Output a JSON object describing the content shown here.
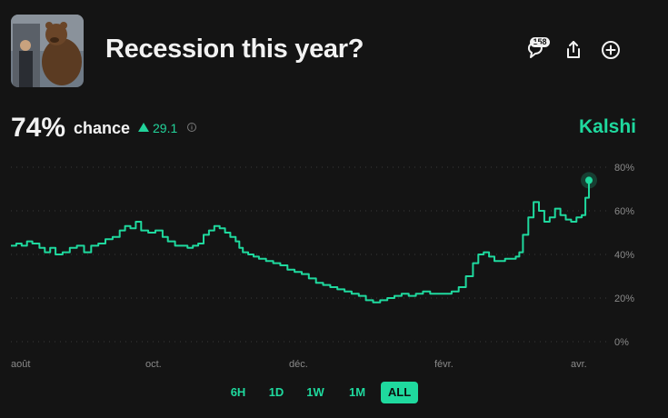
{
  "header": {
    "title": "Recession this year?",
    "comments_count": "158",
    "icons": [
      "comment-icon",
      "share-icon",
      "add-icon"
    ]
  },
  "stats": {
    "probability": "74%",
    "label": "chance",
    "delta": "29.1",
    "delta_direction": "up"
  },
  "brand": "Kalshi",
  "colors": {
    "accent": "#1fd99e",
    "background": "#141414",
    "text": "#f2f2f2"
  },
  "chart_data": {
    "type": "line",
    "x_labels": [
      "août",
      "oct.",
      "déc.",
      "févr.",
      "avr."
    ],
    "y_ticks": [
      "80%",
      "60%",
      "40%",
      "20%",
      "0%"
    ],
    "ylim": [
      0,
      80
    ],
    "grid": true,
    "series": [
      {
        "points": [
          [
            0,
            44
          ],
          [
            3,
            45
          ],
          [
            6,
            44
          ],
          [
            9,
            46
          ],
          [
            12,
            45
          ],
          [
            16,
            43
          ],
          [
            19,
            41
          ],
          [
            22,
            43
          ],
          [
            25,
            40
          ],
          [
            29,
            41
          ],
          [
            33,
            43
          ],
          [
            37,
            44
          ],
          [
            41,
            41
          ],
          [
            45,
            44
          ],
          [
            49,
            45
          ],
          [
            53,
            47
          ],
          [
            57,
            48
          ],
          [
            61,
            51
          ],
          [
            64,
            53
          ],
          [
            67,
            52
          ],
          [
            70,
            55
          ],
          [
            73,
            51
          ],
          [
            77,
            50
          ],
          [
            81,
            51
          ],
          [
            85,
            48
          ],
          [
            88,
            46
          ],
          [
            92,
            44
          ],
          [
            95,
            44
          ],
          [
            99,
            43
          ],
          [
            102,
            44
          ],
          [
            105,
            45
          ],
          [
            108,
            49
          ],
          [
            111,
            51
          ],
          [
            114,
            53
          ],
          [
            117,
            52
          ],
          [
            120,
            50
          ],
          [
            123,
            48
          ],
          [
            126,
            46
          ],
          [
            128,
            43
          ],
          [
            130,
            41
          ],
          [
            133,
            40
          ],
          [
            136,
            39
          ],
          [
            139,
            38
          ],
          [
            143,
            37
          ],
          [
            147,
            36
          ],
          [
            151,
            35
          ],
          [
            155,
            33
          ],
          [
            159,
            32
          ],
          [
            163,
            31
          ],
          [
            167,
            29
          ],
          [
            171,
            27
          ],
          [
            175,
            26
          ],
          [
            179,
            25
          ],
          [
            183,
            24
          ],
          [
            187,
            23
          ],
          [
            191,
            22
          ],
          [
            195,
            21
          ],
          [
            199,
            19
          ],
          [
            203,
            18
          ],
          [
            207,
            19
          ],
          [
            211,
            20
          ],
          [
            215,
            21
          ],
          [
            219,
            22
          ],
          [
            223,
            21
          ],
          [
            227,
            22
          ],
          [
            231,
            23
          ],
          [
            235,
            22
          ],
          [
            239,
            22
          ],
          [
            243,
            22
          ],
          [
            247,
            23
          ],
          [
            251,
            25
          ],
          [
            255,
            30
          ],
          [
            259,
            36
          ],
          [
            262,
            40
          ],
          [
            265,
            41
          ],
          [
            268,
            39
          ],
          [
            271,
            37
          ],
          [
            274,
            37
          ],
          [
            277,
            38
          ],
          [
            280,
            38
          ],
          [
            283,
            39
          ],
          [
            285,
            41
          ],
          [
            287,
            49
          ],
          [
            290,
            57
          ],
          [
            293,
            64
          ],
          [
            296,
            60
          ],
          [
            299,
            55
          ],
          [
            302,
            57
          ],
          [
            305,
            61
          ],
          [
            308,
            58
          ],
          [
            311,
            56
          ],
          [
            314,
            55
          ],
          [
            317,
            57
          ],
          [
            320,
            58
          ],
          [
            322,
            66
          ],
          [
            324,
            74
          ]
        ]
      }
    ],
    "last_value": 74
  },
  "ranges": [
    {
      "label": "6H",
      "active": false
    },
    {
      "label": "1D",
      "active": false
    },
    {
      "label": "1W",
      "active": false
    },
    {
      "label": "1M",
      "active": false
    },
    {
      "label": "ALL",
      "active": true
    }
  ]
}
